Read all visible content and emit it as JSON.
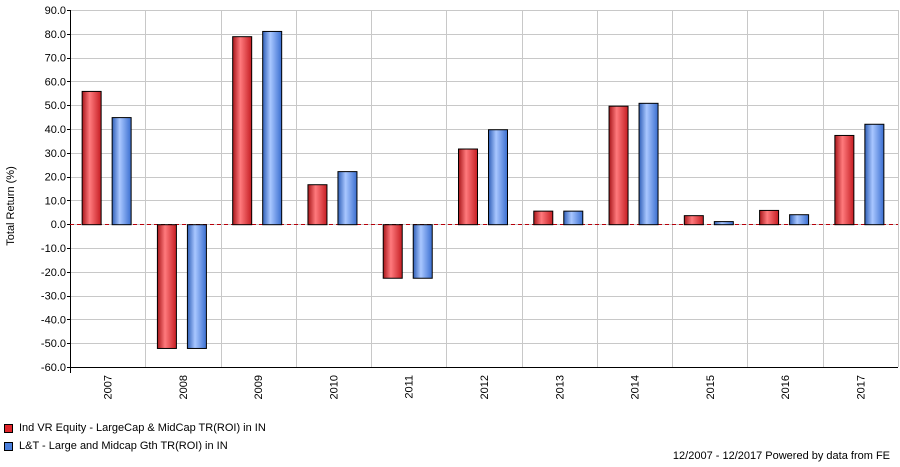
{
  "chart_data": {
    "type": "bar",
    "ylabel": "Total Return (%)",
    "ylim": [
      -60,
      90
    ],
    "ytick_step": 10,
    "categories": [
      "2007",
      "2008",
      "2009",
      "2010",
      "2011",
      "2012",
      "2013",
      "2014",
      "2015",
      "2016",
      "2017"
    ],
    "series": [
      {
        "name": "Ind VR Equity - LargeCap & MidCap TR(ROI) in IN",
        "color": "#d9262b",
        "values": [
          56.0,
          -52.0,
          79.0,
          16.8,
          -22.5,
          31.8,
          5.7,
          49.8,
          3.8,
          6.0,
          37.5
        ]
      },
      {
        "name": "L&T - Large and Midcap Gth TR(ROI) in IN",
        "color": "#4a7fdc",
        "values": [
          45.0,
          -52.0,
          81.2,
          22.3,
          -22.5,
          39.9,
          5.7,
          51.0,
          1.3,
          4.2,
          42.2
        ]
      }
    ],
    "grid": true,
    "zero_line": "dashed red"
  },
  "footer": {
    "credit": "12/2007 - 12/2017 Powered by data from FE"
  }
}
